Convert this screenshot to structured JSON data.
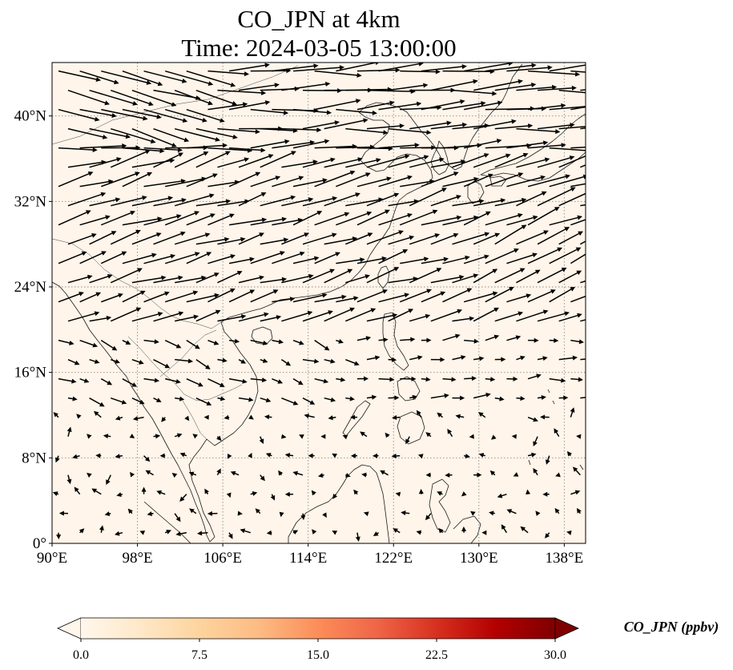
{
  "title": {
    "line1": "CO_JPN at 4km",
    "line2": "Time: 2024-03-05 13:00:00"
  },
  "map": {
    "lon_range": [
      90,
      140
    ],
    "lat_range": [
      0,
      45
    ],
    "lon_ticks": [
      {
        "value": 90,
        "label": "90°E"
      },
      {
        "value": 98,
        "label": "98°E"
      },
      {
        "value": 106,
        "label": "106°E"
      },
      {
        "value": 114,
        "label": "114°E"
      },
      {
        "value": 122,
        "label": "122°E"
      },
      {
        "value": 130,
        "label": "130°E"
      },
      {
        "value": 138,
        "label": "138°E"
      }
    ],
    "lat_ticks": [
      {
        "value": 0,
        "label": "0°"
      },
      {
        "value": 8,
        "label": "8°N"
      },
      {
        "value": 16,
        "label": "16°N"
      },
      {
        "value": 24,
        "label": "24°N"
      },
      {
        "value": 32,
        "label": "32°N"
      },
      {
        "value": 40,
        "label": "40°N"
      }
    ],
    "field_color": "#fff5ea",
    "coast_color": "#1a1a1a",
    "arrow_color": "#000000"
  },
  "colorbar": {
    "label": "CO_JPN (ppbv)",
    "vmin": 0,
    "vmax": 30,
    "ticks": [
      {
        "value": 0,
        "label": "0.0"
      },
      {
        "value": 7.5,
        "label": "7.5"
      },
      {
        "value": 15,
        "label": "15.0"
      },
      {
        "value": 22.5,
        "label": "22.5"
      },
      {
        "value": 30,
        "label": "30.0"
      }
    ],
    "colormap": [
      "#fff7ec",
      "#fee8c8",
      "#fdd49e",
      "#fdbb84",
      "#fc8d59",
      "#ef6548",
      "#d7301f",
      "#b30000",
      "#7f0000"
    ]
  }
}
